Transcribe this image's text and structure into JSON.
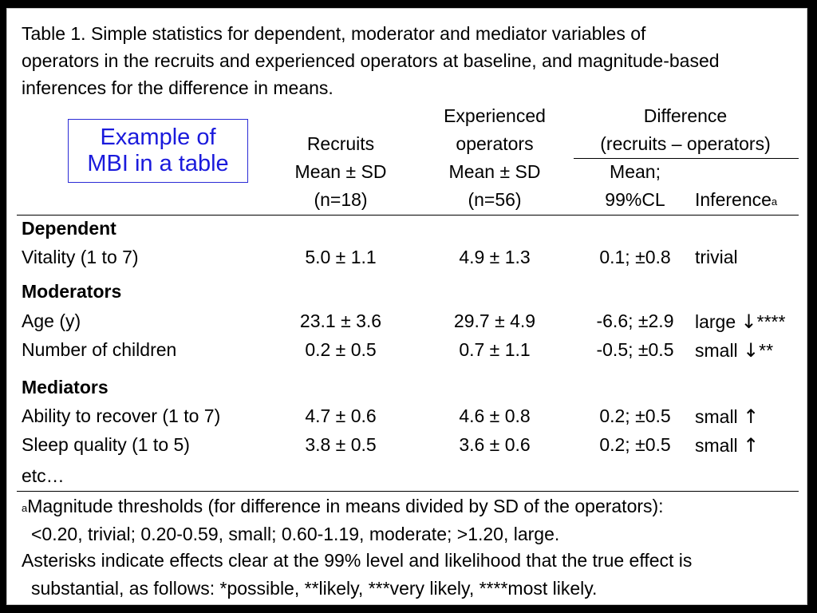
{
  "title": {
    "lines": [
      "Table 1. Simple statistics for dependent, moderator and mediator variables of",
      "operators in the recruits and experienced operators at baseline, and magnitude-based",
      "inferences for the difference in means."
    ]
  },
  "callout": {
    "line1": "Example of",
    "line2": "MBI in a table"
  },
  "headers": {
    "recruits": {
      "l1": "Recruits",
      "l2": "Mean ± SD",
      "l3": "(n=18)"
    },
    "experienced": {
      "l1": "Experienced",
      "l2": "operators",
      "l3": "Mean ± SD",
      "l4": "(n=56)"
    },
    "difference": {
      "l1": "Difference",
      "l2": "(recruits – operators)"
    },
    "mean_cl": {
      "l1": "Mean;",
      "l2": "99%CL"
    },
    "inference": {
      "label": "Inference",
      "sup": "a"
    }
  },
  "sections": {
    "dependent": "Dependent",
    "moderators": "Moderators",
    "mediators": "Mediators"
  },
  "rows": [
    {
      "variable": "Vitality (1 to 7)",
      "recruits": "5.0 ± 1.1",
      "experienced": "4.9 ± 1.3",
      "mean_cl": "0.1; ±0.8",
      "inference": "trivial",
      "arrow": "",
      "stars": ""
    },
    {
      "variable": "Age (y)",
      "recruits": "23.1 ± 3.6",
      "experienced": "29.7 ± 4.9",
      "mean_cl": "-6.6; ±2.9",
      "inference": "large",
      "arrow": "↓",
      "stars": "****"
    },
    {
      "variable": "Number of children",
      "recruits": "0.2 ± 0.5",
      "experienced": "0.7 ± 1.1",
      "mean_cl": "-0.5; ±0.5",
      "inference": "small",
      "arrow": "↓",
      "stars": "**"
    },
    {
      "variable": "Ability to recover (1 to 7)",
      "recruits": "4.7 ± 0.6",
      "experienced": "4.6 ± 0.8",
      "mean_cl": "0.2; ±0.5",
      "inference": "small",
      "arrow": "↑",
      "stars": ""
    },
    {
      "variable": "Sleep quality (1 to 5)",
      "recruits": "3.8 ± 0.5",
      "experienced": "3.6 ± 0.6",
      "mean_cl": "0.2; ±0.5",
      "inference": "small",
      "arrow": "↑",
      "stars": ""
    }
  ],
  "etc": "etc…",
  "footnotes": {
    "sup": "a",
    "line1": "Magnitude thresholds (for difference in means divided by SD of the operators):",
    "line2": "<0.20, trivial; 0.20-0.59, small; 0.60-1.19, moderate; >1.20, large.",
    "line3": "Asterisks indicate effects clear at the 99% level and likelihood that the true effect is",
    "line4": "substantial, as follows: *possible, **likely, ***very likely, ****most likely."
  }
}
